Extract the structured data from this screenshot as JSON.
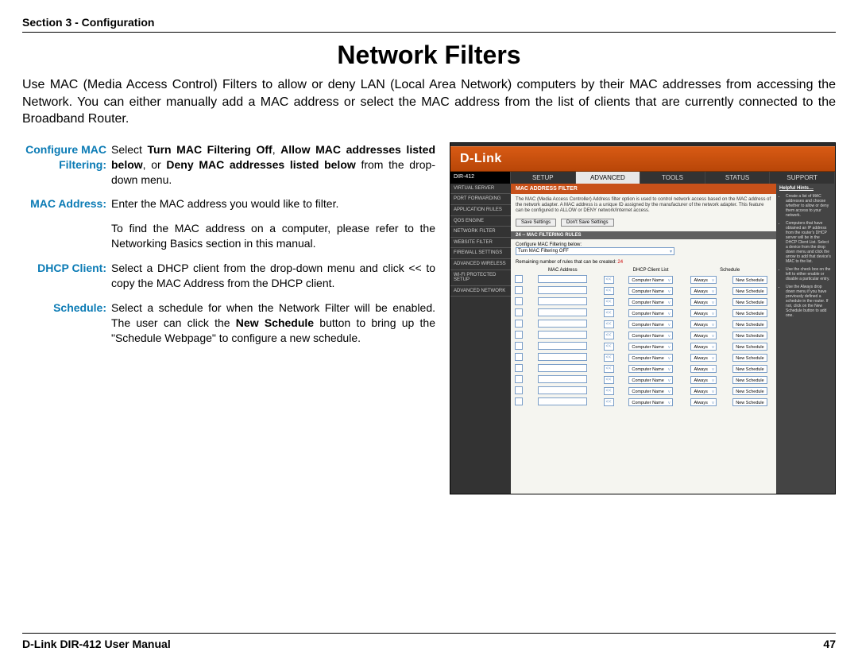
{
  "header": {
    "section": "Section 3 - Configuration"
  },
  "title": "Network Filters",
  "intro": "Use MAC (Media Access Control) Filters to allow or deny LAN (Local Area Network) computers by their MAC addresses from accessing the Network. You can either manually add a MAC address or select the MAC address from the list of clients that are currently connected to the Broadband Router.",
  "defs": {
    "configure": {
      "label": "Configure MAC Filtering:",
      "pre": "Select ",
      "b1": "Turn MAC Filtering Off",
      "mid1": ", ",
      "b2": "Allow MAC addresses listed below",
      "mid2": ", or ",
      "b3": "Deny MAC addresses listed below",
      "post": " from the drop-down menu."
    },
    "mac": {
      "label": "MAC Address:",
      "p1": "Enter the MAC address you would like to filter.",
      "p2": "To find the MAC address on a computer, please refer to the Networking Basics section in this manual."
    },
    "dhcp": {
      "label": "DHCP Client:",
      "text": "Select a DHCP client from the drop-down menu and click << to copy the MAC Address from the DHCP client."
    },
    "schedule": {
      "label": "Schedule:",
      "pre": "Select a schedule for when the Network Filter will be enabled. The user can click the ",
      "b1": "New Schedule",
      "post": " button to bring up the \"Schedule Webpage\" to configure a new schedule."
    }
  },
  "router": {
    "brand": "D-Link",
    "model": "DIR-412",
    "tabs": [
      "SETUP",
      "ADVANCED",
      "TOOLS",
      "STATUS",
      "SUPPORT"
    ],
    "active_tab": 1,
    "sidebar": [
      "VIRTUAL SERVER",
      "PORT FORWARDING",
      "APPLICATION RULES",
      "QOS ENGINE",
      "NETWORK FILTER",
      "WEBSITE FILTER",
      "FIREWALL SETTINGS",
      "ADVANCED WIRELESS",
      "WI-FI PROTECTED SETUP",
      "ADVANCED NETWORK"
    ],
    "panel_title": "MAC ADDRESS FILTER",
    "desc": "The MAC (Media Access Controller) Address filter option is used to control network access based on the MAC address of the network adapter. A MAC address is a unique ID assigned by the manufacturer of the network adapter. This feature can be configured to ALLOW or DENY network/Internet access.",
    "save": "Save Settings",
    "dont_save": "Don't Save Settings",
    "rules_title": "24 -- MAC FILTERING RULES",
    "config_label": "Configure MAC Filtering below:",
    "config_select": "Turn MAC Filtering OFF",
    "remain_pre": "Remaining number of rules that can be created: ",
    "remain_num": "24",
    "cols": {
      "mac": "MAC Address",
      "dhcp": "DHCP Client List",
      "sched": "Schedule"
    },
    "row": {
      "dhcp": "Computer Name",
      "always": "Always",
      "new": "New Schedule"
    },
    "row_count": 12,
    "hints_title": "Helpful Hints…",
    "hints": [
      "Create a list of MAC addresses and choose whether to allow or deny them access to your network.",
      "Computers that have obtained an IP address from the router's DHCP server will be in the DHCP Client List. Select a device from the drop down menu and click the arrow to add that device's MAC to the list.",
      "Use the check box on the left to either enable or disable a particular entry.",
      "Use the Always drop down menu if you have previously defined a schedule in the router. If not, click on the New Schedule button to add one."
    ]
  },
  "footer": {
    "manual": "D-Link DIR-412 User Manual",
    "page": "47"
  }
}
